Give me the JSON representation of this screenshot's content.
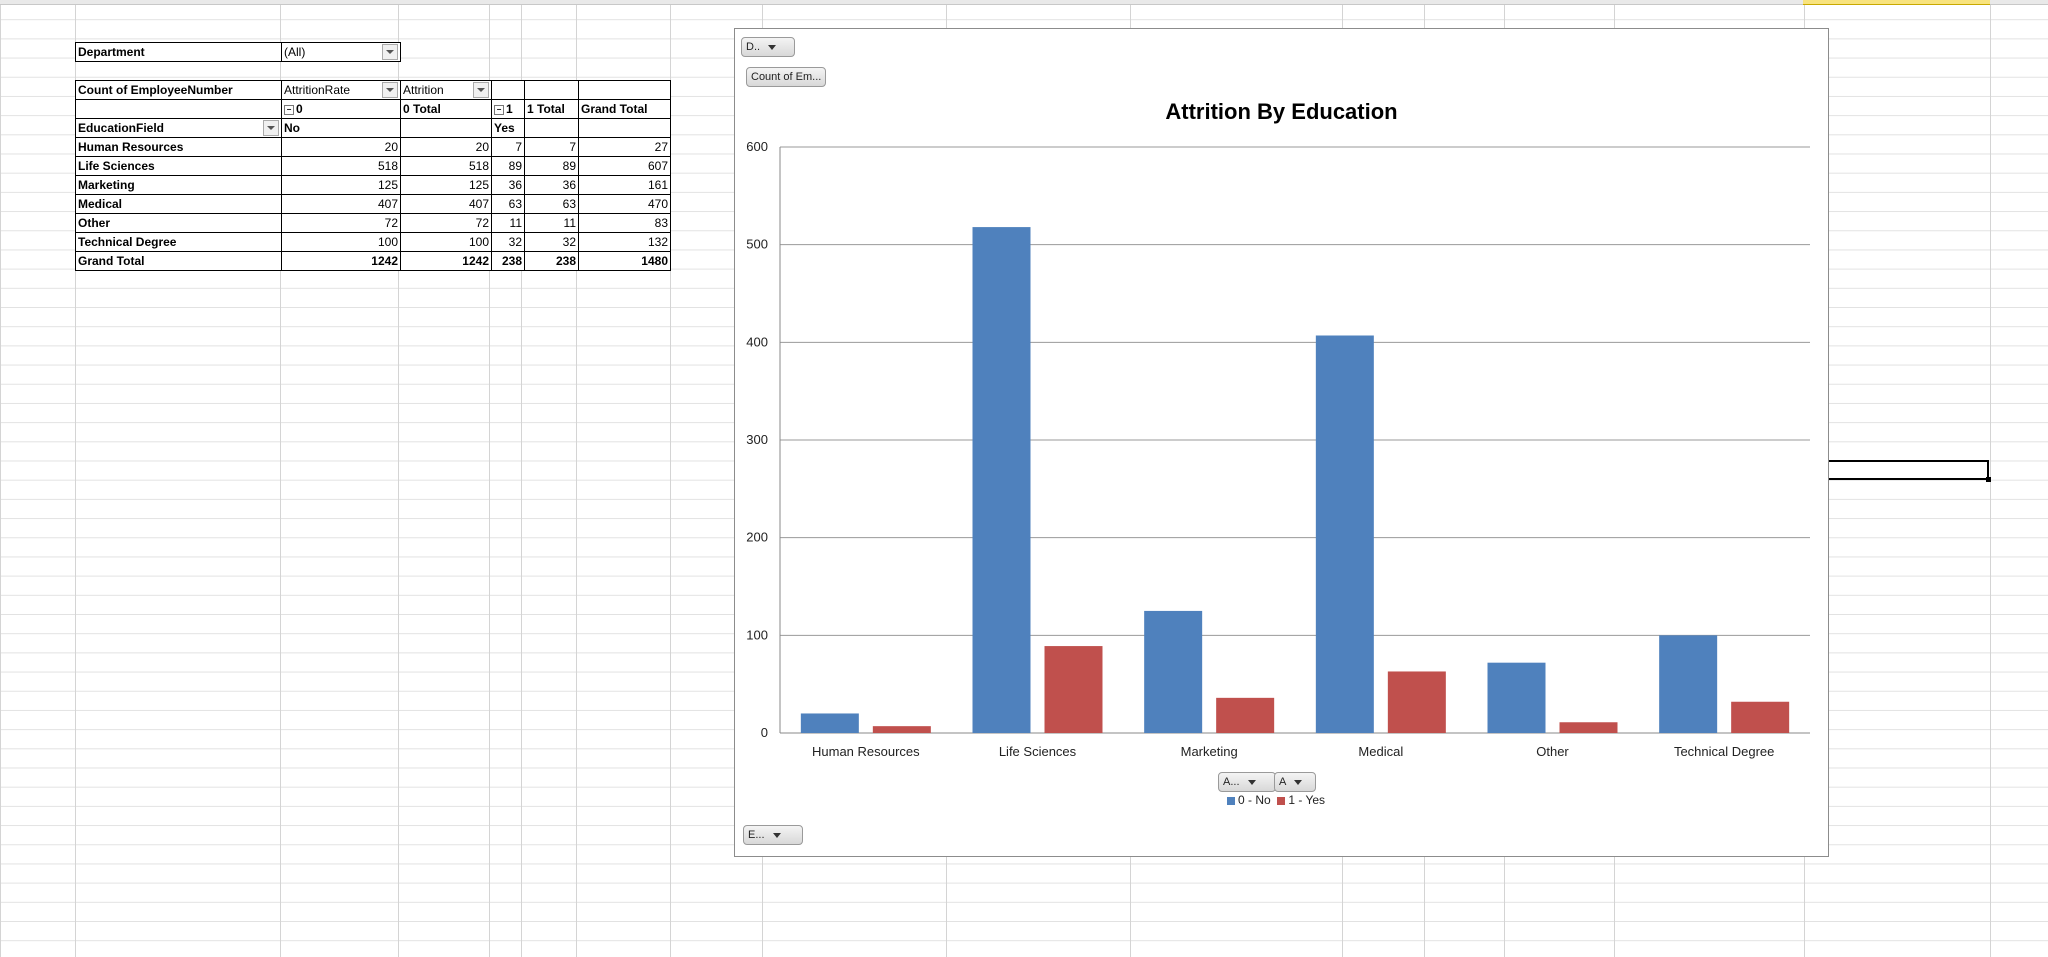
{
  "pivot": {
    "filter_label": "Department",
    "filter_value": "(All)",
    "measure_label": "Count of EmployeeNumber",
    "col_field_1": "AttritionRate",
    "col_field_2": "Attrition",
    "col_0": "0",
    "col_0_total": "0 Total",
    "col_1": "1",
    "col_1_total": "1 Total",
    "grand_total_label": "Grand Total",
    "row_field": "EducationField",
    "sub_no": "No",
    "sub_yes": "Yes",
    "rows": [
      {
        "name": "Human Resources",
        "no": "20",
        "no_total": "20",
        "yes": "7",
        "yes_total": "7",
        "total": "27"
      },
      {
        "name": "Life Sciences",
        "no": "518",
        "no_total": "518",
        "yes": "89",
        "yes_total": "89",
        "total": "607"
      },
      {
        "name": "Marketing",
        "no": "125",
        "no_total": "125",
        "yes": "36",
        "yes_total": "36",
        "total": "161"
      },
      {
        "name": "Medical",
        "no": "407",
        "no_total": "407",
        "yes": "63",
        "yes_total": "63",
        "total": "470"
      },
      {
        "name": "Other",
        "no": "72",
        "no_total": "72",
        "yes": "11",
        "yes_total": "11",
        "total": "83"
      },
      {
        "name": "Technical Degree",
        "no": "100",
        "no_total": "100",
        "yes": "32",
        "yes_total": "32",
        "total": "132"
      }
    ],
    "grand": {
      "name": "Grand Total",
      "no": "1242",
      "no_total": "1242",
      "yes": "238",
      "yes_total": "238",
      "total": "1480"
    }
  },
  "chart_buttons": {
    "department": "D..",
    "count": "Count of Em...",
    "attr1": "A...",
    "attr2": "A",
    "education": "E..."
  },
  "chart_data": {
    "type": "bar",
    "title": "Attrition By Education",
    "categories": [
      "Human Resources",
      "Life Sciences",
      "Marketing",
      "Medical",
      "Other",
      "Technical Degree"
    ],
    "series": [
      {
        "name": "0 - No",
        "values": [
          20,
          518,
          125,
          407,
          72,
          100
        ],
        "color": "#4f81bd"
      },
      {
        "name": "1 - Yes",
        "values": [
          7,
          89,
          36,
          63,
          11,
          32
        ],
        "color": "#c0504d"
      }
    ],
    "ylim": [
      0,
      600
    ],
    "yticks": [
      0,
      100,
      200,
      300,
      400,
      500,
      600
    ],
    "xlabel": "",
    "ylabel": "",
    "legend": "bottom-center"
  }
}
